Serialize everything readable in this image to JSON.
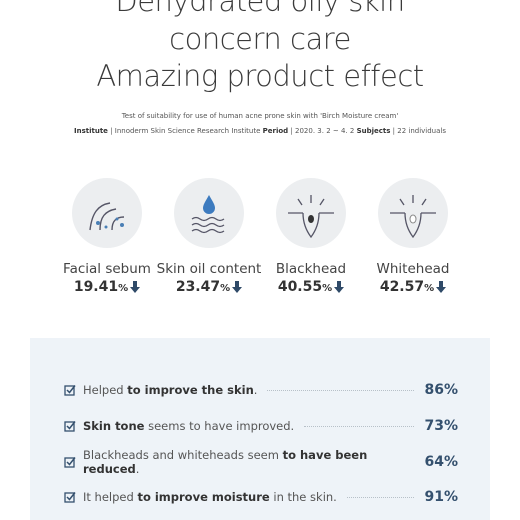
{
  "header": {
    "title_lines": [
      "Dehydrated oily skin",
      "concern care",
      "Amazing product effect"
    ],
    "test": "Test of suitability for use of human acne prone skin with 'Birch Moisture cream'",
    "meta": [
      {
        "key": "Institute",
        "text": "| Innoderm Skin Science Research Institute"
      },
      {
        "key": "Period",
        "text": "| 2020. 3. 2 ~ 4. 2"
      },
      {
        "key": "Subjects",
        "text": "| 22 individuals"
      }
    ]
  },
  "metrics": [
    {
      "label": "Facial sebum",
      "value": "19.41",
      "unit": "%"
    },
    {
      "label": "Skin oil content",
      "value": "23.47",
      "unit": "%"
    },
    {
      "label": "Blackhead",
      "value": "40.55",
      "unit": "%"
    },
    {
      "label": "Whitehead",
      "value": "42.57",
      "unit": "%"
    }
  ],
  "checklist": [
    {
      "parts": [
        {
          "text": "Helped ",
          "bold": false
        },
        {
          "text": "to improve the skin",
          "bold": true
        },
        {
          "text": ".",
          "bold": false
        }
      ],
      "percent": "86%"
    },
    {
      "parts": [
        {
          "text": "Skin tone",
          "bold": true
        },
        {
          "text": " seems to have improved.",
          "bold": false
        }
      ],
      "percent": "73%"
    },
    {
      "parts": [
        {
          "text": "Blackheads and whiteheads seem ",
          "bold": false
        },
        {
          "text": "to have been reduced",
          "bold": true
        },
        {
          "text": ".",
          "bold": false
        }
      ],
      "percent": "64%"
    },
    {
      "parts": [
        {
          "text": "It helped ",
          "bold": false
        },
        {
          "text": "to improve moisture",
          "bold": true
        },
        {
          "text": " in the skin.",
          "bold": false
        }
      ],
      "percent": "91%"
    }
  ]
}
